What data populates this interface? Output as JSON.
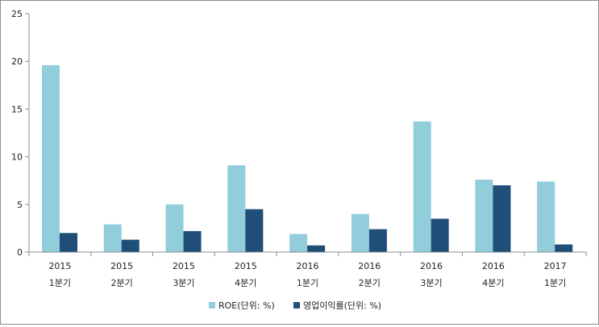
{
  "chart_data": {
    "type": "bar",
    "categories": [
      [
        "2015",
        "1분기"
      ],
      [
        "2015",
        "2분기"
      ],
      [
        "2015",
        "3분기"
      ],
      [
        "2015",
        "4분기"
      ],
      [
        "2016",
        "1분기"
      ],
      [
        "2016",
        "2분기"
      ],
      [
        "2016",
        "3분기"
      ],
      [
        "2016",
        "4분기"
      ],
      [
        "2017",
        "1분기"
      ]
    ],
    "series": [
      {
        "name": "ROE(단위: %)",
        "color": "#92cddc",
        "values": [
          19.6,
          2.9,
          5.0,
          9.1,
          1.9,
          4.0,
          13.7,
          7.6,
          7.4
        ]
      },
      {
        "name": "영업이익률(단위: %)",
        "color": "#1f4e79",
        "values": [
          2.0,
          1.3,
          2.2,
          4.5,
          0.7,
          2.4,
          3.5,
          7.0,
          0.8
        ]
      }
    ],
    "title": "",
    "xlabel": "",
    "ylabel": "",
    "ylim": [
      0,
      25
    ],
    "yticks": [
      "0",
      "5",
      "10",
      "15",
      "20",
      "25"
    ],
    "grid": false,
    "legend_position": "bottom"
  }
}
